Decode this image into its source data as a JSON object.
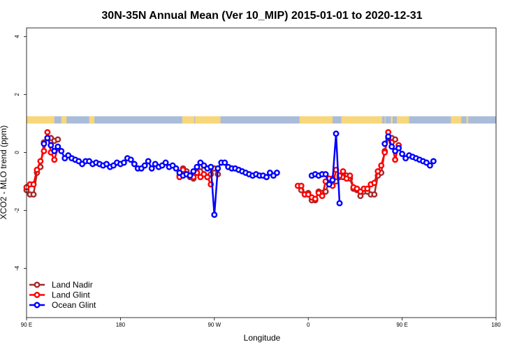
{
  "chart_data": {
    "type": "line",
    "title": "30N-35N Annual Mean (Ver 10_MIP)   2015-01-01 to 2020-12-31",
    "xlabel": "Longitude",
    "ylabel": "XCO2 - MLO trend (ppm)",
    "xlim": [
      -90,
      180
    ],
    "ylim": [
      -5.7,
      4.3
    ],
    "x_ticks": [
      {
        "value": -90,
        "label": "90 E"
      },
      {
        "value": -36,
        "label": "180"
      },
      {
        "value": 18,
        "label": "90 W"
      },
      {
        "value": 72,
        "label": "0"
      },
      {
        "value": 126,
        "label": "90 E"
      },
      {
        "value": 180,
        "label": "180"
      }
    ],
    "y_ticks": [
      -4,
      -2,
      0,
      2,
      4
    ],
    "legend_position": "bottom-left",
    "grid": false,
    "land_ocean_band": {
      "y_range": [
        1.0,
        1.25
      ],
      "land_color": "#f8d77a",
      "ocean_color": "#a9bcd9",
      "land_segments": [
        [
          -90,
          -74
        ],
        [
          -70,
          -67
        ],
        [
          -54,
          -51
        ],
        [
          -0.5,
          6.5
        ],
        [
          7,
          21.5
        ],
        [
          67,
          86
        ],
        [
          91,
          114.5
        ],
        [
          116,
          116.5
        ],
        [
          119.5,
          120.5
        ],
        [
          123,
          130
        ],
        [
          154,
          160
        ],
        [
          163,
          164
        ]
      ]
    },
    "series": [
      {
        "name": "Land Nadir",
        "color": "#a52a2a",
        "segments": [
          [
            [
              -90,
              -1.3
            ],
            [
              -88,
              -1.45
            ],
            [
              -86,
              -1.45
            ],
            [
              -84,
              -0.7
            ],
            [
              -82,
              -0.5
            ],
            [
              -80,
              0.35
            ],
            [
              -78,
              0.5
            ],
            [
              -76,
              0.5
            ],
            [
              -74,
              0.4
            ],
            [
              -72,
              0.45
            ]
          ],
          [
            [
              -2,
              -0.8
            ],
            [
              0,
              -0.55
            ],
            [
              2,
              -0.65
            ],
            [
              4,
              -0.85
            ],
            [
              6,
              -0.9
            ],
            [
              8,
              -0.7
            ],
            [
              10,
              -0.5
            ],
            [
              12,
              -0.75
            ],
            [
              14,
              -0.85
            ],
            [
              16,
              -0.75
            ],
            [
              18,
              -0.55
            ],
            [
              20,
              -0.75
            ]
          ],
          [
            [
              68,
              -1.3
            ],
            [
              70,
              -1.45
            ],
            [
              72,
              -1.4
            ],
            [
              74,
              -1.65
            ],
            [
              76,
              -1.65
            ],
            [
              78,
              -1.35
            ],
            [
              80,
              -1.4
            ],
            [
              82,
              -1.35
            ],
            [
              84,
              -1.0
            ],
            [
              86,
              -0.9
            ],
            [
              88,
              -1.0
            ],
            [
              90,
              -0.85
            ],
            [
              92,
              -0.85
            ],
            [
              94,
              -0.8
            ],
            [
              96,
              -0.9
            ],
            [
              98,
              -1.25
            ],
            [
              100,
              -1.3
            ],
            [
              102,
              -1.5
            ],
            [
              104,
              -1.35
            ],
            [
              106,
              -1.35
            ],
            [
              108,
              -1.45
            ],
            [
              110,
              -1.45
            ],
            [
              112,
              -0.8
            ],
            [
              114,
              -0.7
            ],
            [
              116,
              0.05
            ],
            [
              118,
              0.5
            ],
            [
              120,
              0.5
            ],
            [
              122,
              0.45
            ]
          ]
        ]
      },
      {
        "name": "Land Glint",
        "color": "#ff0000",
        "segments": [
          [
            [
              -90,
              -1.2
            ],
            [
              -88,
              -1.1
            ],
            [
              -86,
              -1.1
            ],
            [
              -84,
              -0.6
            ],
            [
              -82,
              -0.3
            ],
            [
              -80,
              0.05
            ],
            [
              -78,
              0.7
            ],
            [
              -76,
              0.0
            ],
            [
              -74,
              -0.25
            ],
            [
              -72,
              0.15
            ]
          ],
          [
            [
              -2,
              -0.85
            ],
            [
              0,
              -0.6
            ],
            [
              2,
              -0.75
            ],
            [
              4,
              -0.8
            ],
            [
              6,
              -0.85
            ],
            [
              8,
              -0.7
            ],
            [
              10,
              -0.85
            ],
            [
              12,
              -0.75
            ],
            [
              14,
              -0.85
            ],
            [
              16,
              -1.1
            ]
          ],
          [
            [
              66,
              -1.15
            ],
            [
              68,
              -1.15
            ],
            [
              70,
              -1.45
            ],
            [
              72,
              -1.45
            ],
            [
              74,
              -1.55
            ],
            [
              76,
              -1.6
            ],
            [
              78,
              -1.4
            ],
            [
              80,
              -1.5
            ],
            [
              82,
              -1.0
            ],
            [
              84,
              -0.9
            ],
            [
              86,
              -1.15
            ],
            [
              88,
              -0.6
            ],
            [
              90,
              -0.8
            ],
            [
              92,
              -0.65
            ],
            [
              94,
              -0.9
            ],
            [
              96,
              -0.8
            ],
            [
              98,
              -1.2
            ],
            [
              100,
              -1.25
            ],
            [
              102,
              -1.35
            ],
            [
              104,
              -1.25
            ],
            [
              106,
              -1.25
            ],
            [
              108,
              -1.1
            ],
            [
              110,
              -1.05
            ],
            [
              112,
              -0.65
            ],
            [
              114,
              -0.45
            ],
            [
              116,
              0.0
            ],
            [
              118,
              0.7
            ],
            [
              120,
              0.35
            ],
            [
              122,
              -0.25
            ],
            [
              124,
              0.25
            ]
          ]
        ]
      },
      {
        "name": "Ocean Glint",
        "color": "#0000ff",
        "segments": [
          [
            [
              -80,
              0.3
            ],
            [
              -78,
              0.5
            ],
            [
              -76,
              0.25
            ],
            [
              -74,
              0.05
            ],
            [
              -72,
              0.2
            ],
            [
              -70,
              0.05
            ],
            [
              -68,
              -0.2
            ],
            [
              -66,
              -0.1
            ],
            [
              -64,
              -0.2
            ],
            [
              -62,
              -0.25
            ],
            [
              -60,
              -0.3
            ],
            [
              -58,
              -0.4
            ],
            [
              -56,
              -0.3
            ],
            [
              -54,
              -0.3
            ],
            [
              -52,
              -0.4
            ],
            [
              -50,
              -0.35
            ],
            [
              -48,
              -0.4
            ],
            [
              -46,
              -0.45
            ],
            [
              -44,
              -0.4
            ],
            [
              -42,
              -0.5
            ],
            [
              -40,
              -0.45
            ],
            [
              -38,
              -0.35
            ],
            [
              -36,
              -0.4
            ],
            [
              -34,
              -0.35
            ],
            [
              -32,
              -0.2
            ],
            [
              -30,
              -0.25
            ],
            [
              -28,
              -0.4
            ],
            [
              -26,
              -0.55
            ],
            [
              -24,
              -0.55
            ],
            [
              -22,
              -0.45
            ],
            [
              -20,
              -0.3
            ],
            [
              -18,
              -0.55
            ],
            [
              -16,
              -0.4
            ],
            [
              -14,
              -0.5
            ],
            [
              -12,
              -0.45
            ],
            [
              -10,
              -0.35
            ],
            [
              -8,
              -0.5
            ],
            [
              -6,
              -0.45
            ],
            [
              -4,
              -0.55
            ],
            [
              -2,
              -0.7
            ],
            [
              0,
              -0.8
            ],
            [
              2,
              -0.75
            ],
            [
              4,
              -0.8
            ],
            [
              6,
              -0.65
            ],
            [
              8,
              -0.5
            ],
            [
              10,
              -0.35
            ],
            [
              12,
              -0.45
            ],
            [
              14,
              -0.55
            ],
            [
              16,
              -0.5
            ],
            [
              18,
              -2.15
            ],
            [
              20,
              -0.55
            ],
            [
              22,
              -0.35
            ],
            [
              24,
              -0.35
            ],
            [
              26,
              -0.5
            ],
            [
              28,
              -0.55
            ],
            [
              30,
              -0.55
            ],
            [
              32,
              -0.6
            ],
            [
              34,
              -0.65
            ],
            [
              36,
              -0.7
            ],
            [
              38,
              -0.75
            ],
            [
              40,
              -0.8
            ],
            [
              42,
              -0.75
            ],
            [
              44,
              -0.8
            ],
            [
              46,
              -0.8
            ],
            [
              48,
              -0.85
            ],
            [
              50,
              -0.7
            ],
            [
              52,
              -0.8
            ],
            [
              54,
              -0.7
            ]
          ],
          [
            [
              74,
              -0.8
            ],
            [
              76,
              -0.75
            ],
            [
              78,
              -0.8
            ],
            [
              80,
              -0.75
            ],
            [
              82,
              -0.75
            ],
            [
              84,
              -1.1
            ],
            [
              86,
              -0.95
            ],
            [
              88,
              0.65
            ],
            [
              90,
              -1.75
            ]
          ],
          [
            [
              116,
              0.3
            ],
            [
              118,
              0.55
            ],
            [
              120,
              0.2
            ],
            [
              122,
              0.05
            ],
            [
              124,
              0.15
            ],
            [
              126,
              -0.05
            ],
            [
              128,
              -0.2
            ],
            [
              130,
              -0.1
            ],
            [
              132,
              -0.15
            ],
            [
              134,
              -0.2
            ],
            [
              136,
              -0.25
            ],
            [
              138,
              -0.3
            ],
            [
              140,
              -0.35
            ],
            [
              142,
              -0.45
            ],
            [
              144,
              -0.3
            ]
          ]
        ]
      }
    ]
  }
}
